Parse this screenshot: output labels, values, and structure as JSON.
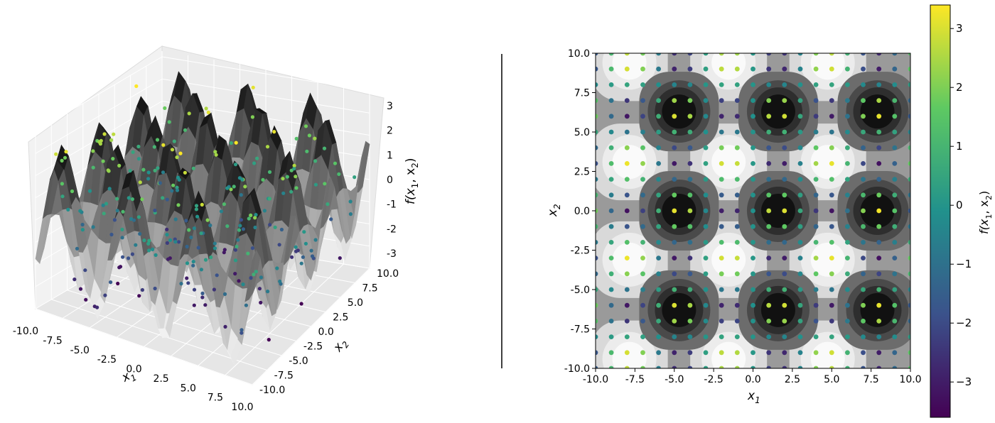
{
  "figure": {
    "separator": true
  },
  "chart_data": [
    {
      "type": "surface3d",
      "panel": "left",
      "surface": "checkerboard of sinusoidal peaks and valleys, grayscale shading",
      "xlabel": "x",
      "xlabel_sub": "1",
      "ylabel": "x",
      "ylabel_sub": "2",
      "zlabel_prefix": "f(x",
      "zlabel_sub1": "1",
      "zlabel_mid": ", x",
      "zlabel_sub2": "2",
      "zlabel_suffix": ")",
      "xlim": [
        -10,
        10
      ],
      "ylim": [
        -10,
        10
      ],
      "zlim": [
        -3.6,
        3.6
      ],
      "x_ticks": [
        "-10.0",
        "-7.5",
        "-5.0",
        "-2.5",
        "0.0",
        "2.5",
        "5.0",
        "7.5",
        "10.0"
      ],
      "y_ticks": [
        "-10.0",
        "-7.5",
        "-5.0",
        "-2.5",
        "0.0",
        "2.5",
        "5.0",
        "7.5",
        "10.0"
      ],
      "z_ticks": [
        "3",
        "2",
        "1",
        "0",
        "-1",
        "-2",
        "-3"
      ],
      "scatter": "colored sample points above and around the surface",
      "grid": true
    },
    {
      "type": "heatmap",
      "panel": "right",
      "xlabel": "x",
      "xlabel_sub": "1",
      "ylabel": "x",
      "ylabel_sub": "2",
      "xlim": [
        -10,
        10
      ],
      "ylim": [
        -10,
        10
      ],
      "x_ticks": [
        "-10.0",
        "-7.5",
        "-5.0",
        "-2.5",
        "0.0",
        "2.5",
        "5.0",
        "7.5",
        "10.0"
      ],
      "y_ticks": [
        "10.0",
        "7.5",
        "5.0",
        "2.5",
        "0.0",
        "-2.5",
        "-5.0",
        "-7.5",
        "-10.0"
      ],
      "dark_centers": [
        [
          -4.7,
          6.3
        ],
        [
          1.6,
          6.3
        ],
        [
          7.9,
          6.3
        ],
        [
          -4.7,
          0
        ],
        [
          1.6,
          0
        ],
        [
          7.9,
          0
        ],
        [
          -4.7,
          -6.3
        ],
        [
          1.6,
          -6.3
        ],
        [
          7.9,
          -6.3
        ]
      ],
      "light_centers": [
        [
          -7.85,
          9.4
        ],
        [
          -1.55,
          9.4
        ],
        [
          4.75,
          9.4
        ],
        [
          -7.85,
          3.1
        ],
        [
          -1.55,
          3.1
        ],
        [
          4.75,
          3.1
        ],
        [
          -7.85,
          -3.1
        ],
        [
          -1.55,
          -3.1
        ],
        [
          4.75,
          -3.1
        ],
        [
          -7.85,
          -9.4
        ],
        [
          -1.55,
          -9.4
        ],
        [
          4.75,
          -9.4
        ]
      ],
      "scatter": "grid of sample points colored by f(x1, x2)",
      "colorbar": {
        "label_prefix": "f(x",
        "label_sub1": "1",
        "label_mid": ", x",
        "label_sub2": "2",
        "label_suffix": ")",
        "range": [
          -3.6,
          3.4
        ],
        "ticks": [
          "3",
          "2",
          "1",
          "0",
          "−1",
          "−2",
          "−3"
        ],
        "colormap": [
          "#440154",
          "#3b528b",
          "#21918c",
          "#5ec962",
          "#fde725"
        ]
      }
    }
  ]
}
